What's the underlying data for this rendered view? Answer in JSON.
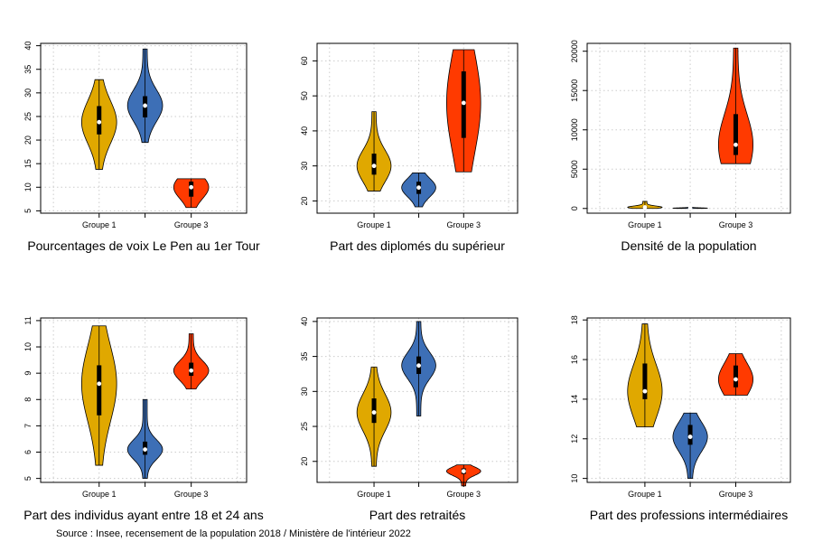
{
  "source": "Source : Insee, recensement de la population 2018 / Ministère de l'intérieur 2022",
  "colors": {
    "Groupe 1": "#e0a800",
    "Groupe 2": "#3d6fb6",
    "Groupe 3": "#ff3a00"
  },
  "chart_data": [
    {
      "type": "violin",
      "title": "Pourcentages de voix Le Pen au 1er Tour",
      "printed_categories": [
        "Groupe 1",
        "Groupe 3"
      ],
      "yticks": [
        5,
        10,
        15,
        20,
        25,
        30,
        35,
        40
      ],
      "ylim": [
        4.5,
        40.5
      ],
      "grid": true,
      "series": [
        {
          "group": "Groupe 1",
          "min": 13.8,
          "q1": 21.2,
          "median": 23.8,
          "q3": 27.2,
          "max": 32.8
        },
        {
          "group": "Groupe 2",
          "min": 19.5,
          "q1": 24.8,
          "median": 27.3,
          "q3": 29.3,
          "max": 39.3
        },
        {
          "group": "Groupe 3",
          "min": 5.7,
          "q1": 8.0,
          "median": 10.0,
          "q3": 11.2,
          "max": 11.8
        }
      ]
    },
    {
      "type": "violin",
      "title": "Part des diplomés du supérieur",
      "printed_categories": [
        "Groupe 1",
        "Groupe 3"
      ],
      "yticks": [
        20,
        30,
        40,
        50,
        60
      ],
      "ylim": [
        16.5,
        65
      ],
      "grid": true,
      "series": [
        {
          "group": "Groupe 1",
          "min": 22.8,
          "q1": 27.5,
          "median": 30.0,
          "q3": 33.5,
          "max": 45.5
        },
        {
          "group": "Groupe 2",
          "min": 18.3,
          "q1": 22.0,
          "median": 23.8,
          "q3": 25.5,
          "max": 28.0
        },
        {
          "group": "Groupe 3",
          "min": 28.3,
          "q1": 38.0,
          "median": 48.0,
          "q3": 57.0,
          "max": 63.2
        }
      ]
    },
    {
      "type": "violin",
      "title": "Densité de la population",
      "printed_categories": [
        "Groupe 1",
        "Groupe 3"
      ],
      "yticks": [
        0,
        5000,
        10000,
        15000,
        20000
      ],
      "ylim": [
        -600,
        21000
      ],
      "grid": true,
      "series": [
        {
          "group": "Groupe 1",
          "min": 0,
          "q1": 80,
          "median": 150,
          "q3": 300,
          "max": 900
        },
        {
          "group": "Groupe 2",
          "min": 0,
          "q1": 20,
          "median": 40,
          "q3": 70,
          "max": 150
        },
        {
          "group": "Groupe 3",
          "min": 5700,
          "q1": 6800,
          "median": 8100,
          "q3": 12000,
          "max": 20400
        }
      ]
    },
    {
      "type": "violin",
      "title": "Part des individus ayant entre 18 et 24 ans",
      "printed_categories": [
        "Groupe 1",
        "Groupe 3"
      ],
      "yticks": [
        5,
        6,
        7,
        8,
        9,
        10,
        11
      ],
      "ylim": [
        4.85,
        11.1
      ],
      "grid": true,
      "series": [
        {
          "group": "Groupe 1",
          "min": 5.5,
          "q1": 7.4,
          "median": 8.6,
          "q3": 9.3,
          "max": 10.8
        },
        {
          "group": "Groupe 2",
          "min": 5.0,
          "q1": 5.9,
          "median": 6.1,
          "q3": 6.4,
          "max": 8.0
        },
        {
          "group": "Groupe 3",
          "min": 8.4,
          "q1": 8.9,
          "median": 9.1,
          "q3": 9.4,
          "max": 10.5
        }
      ]
    },
    {
      "type": "violin",
      "title": "Part des retraités",
      "printed_categories": [
        "Groupe 1",
        "Groupe 3"
      ],
      "yticks": [
        20,
        25,
        30,
        35,
        40
      ],
      "ylim": [
        17,
        40.5
      ],
      "grid": true,
      "series": [
        {
          "group": "Groupe 1",
          "min": 19.3,
          "q1": 25.5,
          "median": 27.0,
          "q3": 29.0,
          "max": 33.5
        },
        {
          "group": "Groupe 2",
          "min": 26.5,
          "q1": 32.5,
          "median": 33.7,
          "q3": 35.0,
          "max": 40.0
        },
        {
          "group": "Groupe 3",
          "min": 16.5,
          "q1": 18.2,
          "median": 18.6,
          "q3": 19.0,
          "max": 19.5
        }
      ]
    },
    {
      "type": "violin",
      "title": "Part des professions intermédiaires",
      "printed_categories": [
        "Groupe 1",
        "Groupe 3"
      ],
      "yticks": [
        10,
        12,
        14,
        16,
        18
      ],
      "ylim": [
        9.8,
        18.1
      ],
      "grid": true,
      "series": [
        {
          "group": "Groupe 1",
          "min": 12.6,
          "q1": 14.0,
          "median": 14.4,
          "q3": 15.8,
          "max": 17.8
        },
        {
          "group": "Groupe 2",
          "min": 10.0,
          "q1": 11.7,
          "median": 12.1,
          "q3": 12.7,
          "max": 13.3
        },
        {
          "group": "Groupe 3",
          "min": 14.2,
          "q1": 14.6,
          "median": 15.0,
          "q3": 15.7,
          "max": 16.3
        }
      ]
    }
  ]
}
